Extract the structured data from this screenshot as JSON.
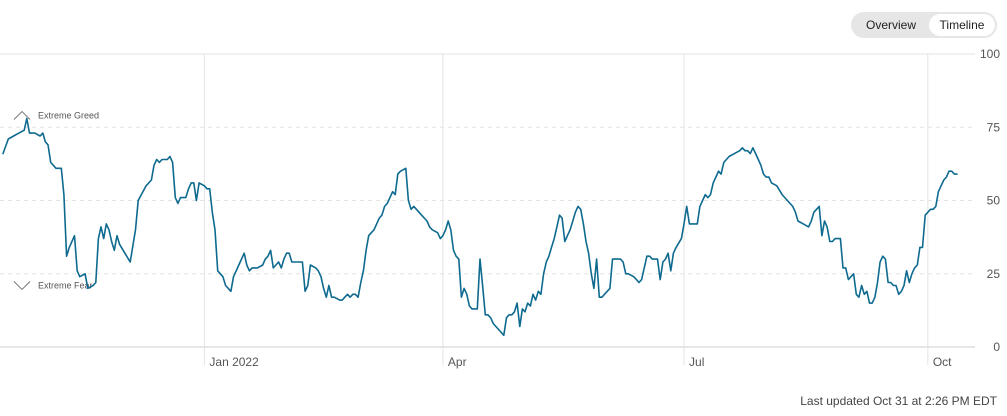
{
  "toggle": {
    "overview_label": "Overview",
    "timeline_label": "Timeline"
  },
  "updated": "Last updated Oct 31 at 2:26 PM EDT",
  "colors": {
    "line": "#0e6a8f",
    "grid": "#e3e3e3",
    "axis": "#cfcfcf",
    "text": "#555555"
  },
  "chart_data": {
    "type": "line",
    "title": "",
    "xlabel": "",
    "ylabel": "",
    "ylim": [
      0,
      100
    ],
    "yticks": [
      0,
      25,
      50,
      75,
      100
    ],
    "grid": true,
    "x_ticks": [
      {
        "label": "Jan 2022",
        "day": 76
      },
      {
        "label": "Apr",
        "day": 166
      },
      {
        "label": "Jul",
        "day": 257
      },
      {
        "label": "Oct",
        "day": 349
      }
    ],
    "annotations": [
      {
        "label": "Extreme Greed",
        "value": 79,
        "icon": "chevron-up-icon"
      },
      {
        "label": "Extreme Fear",
        "value": 21,
        "icon": "chevron-down-icon"
      }
    ],
    "series": [
      {
        "values": [
          [
            0,
            66
          ],
          [
            2,
            71
          ],
          [
            4,
            72
          ],
          [
            6,
            73
          ],
          [
            8,
            74
          ],
          [
            9,
            78
          ],
          [
            10,
            73
          ],
          [
            12,
            73
          ],
          [
            14,
            72
          ],
          [
            15,
            73
          ],
          [
            16,
            70
          ],
          [
            17,
            69
          ],
          [
            18,
            63
          ],
          [
            20,
            61
          ],
          [
            22,
            61
          ],
          [
            23,
            52
          ],
          [
            24,
            31
          ],
          [
            25,
            34
          ],
          [
            26,
            36
          ],
          [
            27,
            38
          ],
          [
            28,
            26
          ],
          [
            29,
            24
          ],
          [
            31,
            25
          ],
          [
            32,
            20
          ],
          [
            34,
            21
          ],
          [
            35,
            22
          ],
          [
            36,
            37
          ],
          [
            37,
            41
          ],
          [
            38,
            37
          ],
          [
            39,
            42
          ],
          [
            40,
            40
          ],
          [
            41,
            36
          ],
          [
            42,
            33
          ],
          [
            43,
            38
          ],
          [
            44,
            35
          ],
          [
            46,
            32
          ],
          [
            48,
            29
          ],
          [
            50,
            40
          ],
          [
            51,
            50
          ],
          [
            54,
            55
          ],
          [
            56,
            57
          ],
          [
            57,
            62
          ],
          [
            58,
            64
          ],
          [
            59,
            63
          ],
          [
            60,
            64
          ],
          [
            62,
            64
          ],
          [
            63,
            65
          ],
          [
            64,
            63
          ],
          [
            65,
            51
          ],
          [
            66,
            49
          ],
          [
            67,
            51
          ],
          [
            69,
            51
          ],
          [
            70,
            54
          ],
          [
            71,
            56
          ],
          [
            72,
            56
          ],
          [
            73,
            50
          ],
          [
            74,
            56
          ],
          [
            76,
            55
          ],
          [
            77,
            54
          ],
          [
            78,
            54
          ],
          [
            79,
            46
          ],
          [
            80,
            40
          ],
          [
            81,
            26
          ],
          [
            82,
            25
          ],
          [
            83,
            24
          ],
          [
            84,
            21
          ],
          [
            85,
            20
          ],
          [
            86,
            19
          ],
          [
            87,
            24
          ],
          [
            88,
            26
          ],
          [
            89,
            28
          ],
          [
            90,
            30
          ],
          [
            91,
            32
          ],
          [
            92,
            28
          ],
          [
            93,
            26
          ],
          [
            94,
            27
          ],
          [
            96,
            27
          ],
          [
            98,
            28
          ],
          [
            99,
            30
          ],
          [
            100,
            31
          ],
          [
            101,
            33
          ],
          [
            102,
            27
          ],
          [
            103,
            28
          ],
          [
            104,
            29
          ],
          [
            105,
            27
          ],
          [
            106,
            30
          ],
          [
            107,
            32
          ],
          [
            108,
            32
          ],
          [
            109,
            29
          ],
          [
            110,
            29
          ],
          [
            112,
            29
          ],
          [
            113,
            29
          ],
          [
            114,
            19
          ],
          [
            115,
            21
          ],
          [
            116,
            28
          ],
          [
            118,
            27
          ],
          [
            119,
            26
          ],
          [
            120,
            24
          ],
          [
            121,
            20
          ],
          [
            122,
            17
          ],
          [
            123,
            21
          ],
          [
            124,
            17
          ],
          [
            125,
            17
          ],
          [
            127,
            16
          ],
          [
            128,
            16
          ],
          [
            129,
            17
          ],
          [
            130,
            18
          ],
          [
            131,
            17
          ],
          [
            132,
            18
          ],
          [
            133,
            18
          ],
          [
            134,
            17
          ],
          [
            135,
            22
          ],
          [
            136,
            26
          ],
          [
            137,
            33
          ],
          [
            138,
            38
          ],
          [
            139,
            39
          ],
          [
            140,
            40
          ],
          [
            142,
            44
          ],
          [
            143,
            45
          ],
          [
            144,
            48
          ],
          [
            145,
            49
          ],
          [
            147,
            53
          ],
          [
            148,
            52
          ],
          [
            149,
            59
          ],
          [
            150,
            60
          ],
          [
            152,
            61
          ],
          [
            153,
            50
          ],
          [
            154,
            47
          ],
          [
            155,
            48
          ],
          [
            156,
            47
          ],
          [
            158,
            45
          ],
          [
            159,
            44
          ],
          [
            160,
            43
          ],
          [
            161,
            41
          ],
          [
            162,
            40
          ],
          [
            164,
            39
          ],
          [
            165,
            37
          ],
          [
            166,
            38
          ],
          [
            167,
            40
          ],
          [
            168,
            43
          ],
          [
            169,
            40
          ],
          [
            170,
            33
          ],
          [
            171,
            31
          ],
          [
            172,
            30
          ],
          [
            173,
            17
          ],
          [
            174,
            20
          ],
          [
            175,
            18
          ],
          [
            176,
            14
          ],
          [
            177,
            13
          ],
          [
            178,
            13
          ],
          [
            179,
            13
          ],
          [
            180,
            30
          ],
          [
            181,
            21
          ],
          [
            182,
            11
          ],
          [
            183,
            11
          ],
          [
            184,
            10
          ],
          [
            185,
            8
          ],
          [
            186,
            7
          ],
          [
            188,
            5
          ],
          [
            189,
            4
          ],
          [
            190,
            10
          ],
          [
            191,
            11
          ],
          [
            192,
            11
          ],
          [
            193,
            12
          ],
          [
            194,
            15
          ],
          [
            195,
            7
          ],
          [
            196,
            13
          ],
          [
            197,
            12
          ],
          [
            198,
            15
          ],
          [
            199,
            14
          ],
          [
            200,
            18
          ],
          [
            201,
            16
          ],
          [
            202,
            19
          ],
          [
            203,
            18
          ],
          [
            204,
            25
          ],
          [
            205,
            29
          ],
          [
            206,
            31
          ],
          [
            207,
            34
          ],
          [
            208,
            37
          ],
          [
            209,
            41
          ],
          [
            210,
            45
          ],
          [
            211,
            44
          ],
          [
            212,
            36
          ],
          [
            213,
            38
          ],
          [
            214,
            40
          ],
          [
            215,
            43
          ],
          [
            216,
            46
          ],
          [
            217,
            48
          ],
          [
            218,
            47
          ],
          [
            219,
            42
          ],
          [
            220,
            36
          ],
          [
            221,
            32
          ],
          [
            222,
            25
          ],
          [
            223,
            20
          ],
          [
            224,
            30
          ],
          [
            225,
            17
          ],
          [
            226,
            17
          ],
          [
            227,
            18
          ],
          [
            228,
            19
          ],
          [
            229,
            20
          ],
          [
            230,
            30
          ],
          [
            231,
            30
          ],
          [
            232,
            30
          ],
          [
            233,
            30
          ],
          [
            234,
            29
          ],
          [
            235,
            25
          ],
          [
            236,
            25
          ],
          [
            238,
            24
          ],
          [
            239,
            23
          ],
          [
            240,
            22
          ],
          [
            241,
            23
          ],
          [
            243,
            31
          ],
          [
            244,
            31
          ],
          [
            245,
            30
          ],
          [
            246,
            30
          ],
          [
            247,
            30
          ],
          [
            248,
            23
          ],
          [
            249,
            29
          ],
          [
            250,
            30
          ],
          [
            251,
            32
          ],
          [
            252,
            26
          ],
          [
            253,
            32
          ],
          [
            254,
            34
          ],
          [
            256,
            37
          ],
          [
            257,
            42
          ],
          [
            258,
            48
          ],
          [
            259,
            42
          ],
          [
            260,
            42
          ],
          [
            262,
            42
          ],
          [
            263,
            48
          ],
          [
            264,
            50
          ],
          [
            265,
            52
          ],
          [
            266,
            51
          ],
          [
            267,
            52
          ],
          [
            268,
            56
          ],
          [
            269,
            58
          ],
          [
            270,
            60
          ],
          [
            271,
            59
          ],
          [
            272,
            63
          ],
          [
            273,
            64
          ],
          [
            274,
            65
          ],
          [
            276,
            66
          ],
          [
            278,
            67
          ],
          [
            279,
            68
          ],
          [
            280,
            67
          ],
          [
            281,
            67
          ],
          [
            282,
            66
          ],
          [
            283,
            68
          ],
          [
            284,
            66
          ],
          [
            285,
            64
          ],
          [
            286,
            62
          ],
          [
            287,
            59
          ],
          [
            288,
            58
          ],
          [
            289,
            58
          ],
          [
            290,
            56
          ],
          [
            292,
            55
          ],
          [
            294,
            52
          ],
          [
            295,
            51
          ],
          [
            296,
            50
          ],
          [
            297,
            49
          ],
          [
            298,
            48
          ],
          [
            299,
            46
          ],
          [
            300,
            43
          ],
          [
            302,
            42
          ],
          [
            304,
            41
          ],
          [
            305,
            43
          ],
          [
            306,
            46
          ],
          [
            308,
            48
          ],
          [
            309,
            38
          ],
          [
            310,
            43
          ],
          [
            311,
            41
          ],
          [
            312,
            36
          ],
          [
            313,
            36
          ],
          [
            314,
            37
          ],
          [
            316,
            37
          ],
          [
            317,
            27
          ],
          [
            318,
            27
          ],
          [
            319,
            23
          ],
          [
            320,
            24
          ],
          [
            321,
            25
          ],
          [
            322,
            18
          ],
          [
            323,
            17
          ],
          [
            324,
            21
          ],
          [
            325,
            18
          ],
          [
            326,
            19
          ],
          [
            327,
            15
          ],
          [
            328,
            15
          ],
          [
            329,
            17
          ],
          [
            330,
            22
          ],
          [
            331,
            29
          ],
          [
            332,
            31
          ],
          [
            333,
            30
          ],
          [
            334,
            22
          ],
          [
            335,
            22
          ],
          [
            336,
            21
          ],
          [
            337,
            21
          ],
          [
            338,
            18
          ],
          [
            339,
            19
          ],
          [
            340,
            21
          ],
          [
            341,
            26
          ],
          [
            342,
            22
          ],
          [
            343,
            25
          ],
          [
            344,
            27
          ],
          [
            345,
            28
          ],
          [
            346,
            34
          ],
          [
            347,
            34
          ],
          [
            348,
            45
          ],
          [
            349,
            46
          ],
          [
            350,
            47
          ],
          [
            351,
            47
          ],
          [
            352,
            48
          ],
          [
            353,
            53
          ],
          [
            354,
            55
          ],
          [
            355,
            57
          ],
          [
            356,
            58
          ],
          [
            357,
            60
          ],
          [
            358,
            60
          ],
          [
            359,
            59
          ],
          [
            360,
            59
          ]
        ]
      }
    ]
  }
}
